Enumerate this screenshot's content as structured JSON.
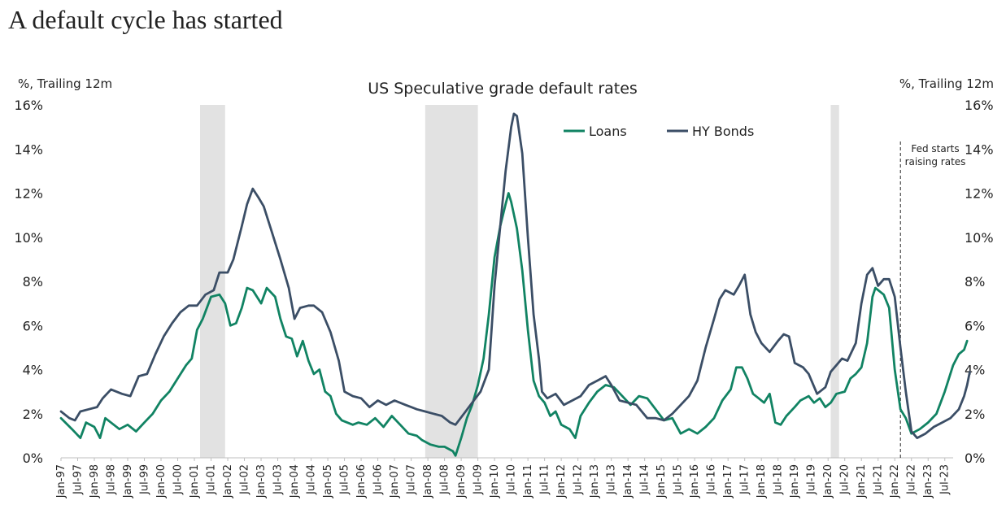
{
  "headline": "A default cycle has started",
  "chart_data": {
    "type": "line",
    "title": "US Speculative grade default rates",
    "ylabel_left": "%, Trailing 12m",
    "ylabel_right": "%, Trailing 12m",
    "ylim": [
      0,
      16
    ],
    "yticks": [
      "0%",
      "2%",
      "4%",
      "6%",
      "8%",
      "10%",
      "12%",
      "14%",
      "16%"
    ],
    "xlim": [
      1997.0,
      2023.75
    ],
    "xticks": [
      "Jan-97",
      "Jul-97",
      "Jan-98",
      "Jul-98",
      "Jan-99",
      "Jul-99",
      "Jan-00",
      "Jul-00",
      "Jan-01",
      "Jul-01",
      "Jan-02",
      "Jul-02",
      "Jan-03",
      "Jul-03",
      "Jan-04",
      "Jul-04",
      "Jan-05",
      "Jul-05",
      "Jan-06",
      "Jul-06",
      "Jan-07",
      "Jul-07",
      "Jan-08",
      "Jul-08",
      "Jan-09",
      "Jul-09",
      "Jan-10",
      "Jul-10",
      "Jan-11",
      "Jul-11",
      "Jan-12",
      "Jul-12",
      "Jan-13",
      "Jul-13",
      "Jan-14",
      "Jul-14",
      "Jan-15",
      "Jul-15",
      "Jan-16",
      "Jul-16",
      "Jan-17",
      "Jul-17",
      "Jan-18",
      "Jul-18",
      "Jan-19",
      "Jul-19",
      "Jan-20",
      "Jul-20",
      "Jan-21",
      "Jul-21",
      "Jan-22",
      "Jul-22",
      "Jan-23",
      "Jul-23"
    ],
    "recessions": [
      [
        2001.17,
        2001.92
      ],
      [
        2007.92,
        2009.5
      ],
      [
        2020.08,
        2020.33
      ]
    ],
    "grid": false,
    "legend_position": "top-center",
    "annotation": {
      "x": 2022.17,
      "lines": [
        "Fed starts",
        "raising rates"
      ]
    },
    "colors": {
      "Loans": "#118363",
      "HY Bonds": "#3b4e66",
      "recession": "#e2e2e2"
    },
    "series": [
      {
        "name": "Loans",
        "points": [
          [
            1997.0,
            1.8
          ],
          [
            1997.33,
            1.3
          ],
          [
            1997.58,
            0.9
          ],
          [
            1997.75,
            1.6
          ],
          [
            1998.0,
            1.4
          ],
          [
            1998.17,
            0.9
          ],
          [
            1998.33,
            1.8
          ],
          [
            1998.75,
            1.3
          ],
          [
            1999.0,
            1.5
          ],
          [
            1999.25,
            1.2
          ],
          [
            1999.5,
            1.6
          ],
          [
            1999.75,
            2.0
          ],
          [
            2000.0,
            2.6
          ],
          [
            2000.25,
            3.0
          ],
          [
            2000.5,
            3.6
          ],
          [
            2000.75,
            4.2
          ],
          [
            2000.92,
            4.5
          ],
          [
            2001.08,
            5.8
          ],
          [
            2001.25,
            6.3
          ],
          [
            2001.5,
            7.3
          ],
          [
            2001.75,
            7.4
          ],
          [
            2001.92,
            7.0
          ],
          [
            2002.08,
            6.0
          ],
          [
            2002.25,
            6.1
          ],
          [
            2002.42,
            6.8
          ],
          [
            2002.58,
            7.7
          ],
          [
            2002.75,
            7.6
          ],
          [
            2003.0,
            7.0
          ],
          [
            2003.17,
            7.7
          ],
          [
            2003.42,
            7.3
          ],
          [
            2003.58,
            6.3
          ],
          [
            2003.75,
            5.5
          ],
          [
            2003.92,
            5.4
          ],
          [
            2004.08,
            4.6
          ],
          [
            2004.25,
            5.3
          ],
          [
            2004.42,
            4.4
          ],
          [
            2004.58,
            3.8
          ],
          [
            2004.75,
            4.0
          ],
          [
            2004.92,
            3.0
          ],
          [
            2005.08,
            2.8
          ],
          [
            2005.25,
            2.0
          ],
          [
            2005.42,
            1.7
          ],
          [
            2005.58,
            1.6
          ],
          [
            2005.75,
            1.5
          ],
          [
            2005.92,
            1.6
          ],
          [
            2006.17,
            1.5
          ],
          [
            2006.42,
            1.8
          ],
          [
            2006.67,
            1.4
          ],
          [
            2006.92,
            1.9
          ],
          [
            2007.17,
            1.5
          ],
          [
            2007.42,
            1.1
          ],
          [
            2007.67,
            1.0
          ],
          [
            2007.83,
            0.8
          ],
          [
            2008.08,
            0.6
          ],
          [
            2008.33,
            0.5
          ],
          [
            2008.5,
            0.5
          ],
          [
            2008.75,
            0.3
          ],
          [
            2008.83,
            0.1
          ],
          [
            2009.0,
            0.9
          ],
          [
            2009.17,
            1.8
          ],
          [
            2009.33,
            2.4
          ],
          [
            2009.5,
            3.3
          ],
          [
            2009.67,
            4.5
          ],
          [
            2009.83,
            6.5
          ],
          [
            2010.0,
            9.1
          ],
          [
            2010.17,
            10.5
          ],
          [
            2010.33,
            11.5
          ],
          [
            2010.42,
            12.0
          ],
          [
            2010.5,
            11.6
          ],
          [
            2010.67,
            10.4
          ],
          [
            2010.83,
            8.5
          ],
          [
            2011.0,
            5.8
          ],
          [
            2011.17,
            3.5
          ],
          [
            2011.33,
            2.8
          ],
          [
            2011.5,
            2.5
          ],
          [
            2011.67,
            1.9
          ],
          [
            2011.83,
            2.1
          ],
          [
            2012.0,
            1.5
          ],
          [
            2012.25,
            1.3
          ],
          [
            2012.42,
            0.9
          ],
          [
            2012.58,
            1.9
          ],
          [
            2012.83,
            2.5
          ],
          [
            2013.08,
            3.0
          ],
          [
            2013.33,
            3.3
          ],
          [
            2013.58,
            3.2
          ],
          [
            2013.83,
            2.8
          ],
          [
            2014.08,
            2.4
          ],
          [
            2014.33,
            2.8
          ],
          [
            2014.58,
            2.7
          ],
          [
            2014.83,
            2.2
          ],
          [
            2015.08,
            1.7
          ],
          [
            2015.33,
            1.8
          ],
          [
            2015.58,
            1.1
          ],
          [
            2015.83,
            1.3
          ],
          [
            2016.08,
            1.1
          ],
          [
            2016.33,
            1.4
          ],
          [
            2016.58,
            1.8
          ],
          [
            2016.83,
            2.6
          ],
          [
            2017.08,
            3.1
          ],
          [
            2017.25,
            4.1
          ],
          [
            2017.42,
            4.1
          ],
          [
            2017.58,
            3.6
          ],
          [
            2017.75,
            2.9
          ],
          [
            2017.92,
            2.7
          ],
          [
            2018.08,
            2.5
          ],
          [
            2018.25,
            2.9
          ],
          [
            2018.42,
            1.6
          ],
          [
            2018.58,
            1.5
          ],
          [
            2018.75,
            1.9
          ],
          [
            2019.0,
            2.3
          ],
          [
            2019.17,
            2.6
          ],
          [
            2019.42,
            2.8
          ],
          [
            2019.58,
            2.5
          ],
          [
            2019.75,
            2.7
          ],
          [
            2019.92,
            2.3
          ],
          [
            2020.08,
            2.5
          ],
          [
            2020.25,
            2.9
          ],
          [
            2020.5,
            3.0
          ],
          [
            2020.67,
            3.6
          ],
          [
            2020.83,
            3.8
          ],
          [
            2021.0,
            4.1
          ],
          [
            2021.17,
            5.2
          ],
          [
            2021.33,
            7.3
          ],
          [
            2021.42,
            7.7
          ],
          [
            2021.67,
            7.4
          ],
          [
            2021.83,
            6.8
          ],
          [
            2022.0,
            4.0
          ],
          [
            2022.17,
            2.2
          ],
          [
            2022.33,
            1.8
          ],
          [
            2022.5,
            1.1
          ],
          [
            2022.75,
            1.3
          ],
          [
            2023.0,
            1.6
          ],
          [
            2023.25,
            2.0
          ],
          [
            2023.5,
            3.0
          ],
          [
            2023.75,
            4.2
          ],
          [
            2023.92,
            4.7
          ],
          [
            2024.08,
            4.9
          ],
          [
            2024.17,
            5.3
          ]
        ]
      },
      {
        "name": "HY Bonds",
        "points": [
          [
            1997.0,
            2.1
          ],
          [
            1997.25,
            1.8
          ],
          [
            1997.42,
            1.7
          ],
          [
            1997.58,
            2.1
          ],
          [
            1997.83,
            2.2
          ],
          [
            1998.08,
            2.3
          ],
          [
            1998.25,
            2.7
          ],
          [
            1998.5,
            3.1
          ],
          [
            1998.83,
            2.9
          ],
          [
            1999.08,
            2.8
          ],
          [
            1999.33,
            3.7
          ],
          [
            1999.58,
            3.8
          ],
          [
            1999.83,
            4.7
          ],
          [
            2000.08,
            5.5
          ],
          [
            2000.33,
            6.1
          ],
          [
            2000.58,
            6.6
          ],
          [
            2000.83,
            6.9
          ],
          [
            2001.08,
            6.9
          ],
          [
            2001.33,
            7.4
          ],
          [
            2001.58,
            7.6
          ],
          [
            2001.75,
            8.4
          ],
          [
            2002.0,
            8.4
          ],
          [
            2002.17,
            9.0
          ],
          [
            2002.42,
            10.5
          ],
          [
            2002.58,
            11.5
          ],
          [
            2002.75,
            12.2
          ],
          [
            2002.92,
            11.8
          ],
          [
            2003.08,
            11.4
          ],
          [
            2003.33,
            10.2
          ],
          [
            2003.58,
            9.0
          ],
          [
            2003.83,
            7.7
          ],
          [
            2004.0,
            6.3
          ],
          [
            2004.17,
            6.8
          ],
          [
            2004.42,
            6.9
          ],
          [
            2004.58,
            6.9
          ],
          [
            2004.83,
            6.6
          ],
          [
            2005.08,
            5.7
          ],
          [
            2005.33,
            4.4
          ],
          [
            2005.5,
            3.0
          ],
          [
            2005.75,
            2.8
          ],
          [
            2006.0,
            2.7
          ],
          [
            2006.25,
            2.3
          ],
          [
            2006.5,
            2.6
          ],
          [
            2006.75,
            2.4
          ],
          [
            2007.0,
            2.6
          ],
          [
            2007.33,
            2.4
          ],
          [
            2007.67,
            2.2
          ],
          [
            2007.92,
            2.1
          ],
          [
            2008.17,
            2.0
          ],
          [
            2008.42,
            1.9
          ],
          [
            2008.67,
            1.6
          ],
          [
            2008.83,
            1.5
          ],
          [
            2009.08,
            2.0
          ],
          [
            2009.33,
            2.5
          ],
          [
            2009.58,
            3.0
          ],
          [
            2009.83,
            4.0
          ],
          [
            2010.0,
            7.8
          ],
          [
            2010.17,
            10.5
          ],
          [
            2010.33,
            13.0
          ],
          [
            2010.5,
            15.0
          ],
          [
            2010.58,
            15.6
          ],
          [
            2010.67,
            15.5
          ],
          [
            2010.83,
            13.8
          ],
          [
            2011.0,
            10.0
          ],
          [
            2011.17,
            6.5
          ],
          [
            2011.33,
            4.5
          ],
          [
            2011.42,
            3.0
          ],
          [
            2011.58,
            2.7
          ],
          [
            2011.83,
            2.9
          ],
          [
            2012.08,
            2.4
          ],
          [
            2012.33,
            2.6
          ],
          [
            2012.58,
            2.8
          ],
          [
            2012.83,
            3.3
          ],
          [
            2013.08,
            3.5
          ],
          [
            2013.33,
            3.7
          ],
          [
            2013.5,
            3.3
          ],
          [
            2013.75,
            2.6
          ],
          [
            2014.0,
            2.5
          ],
          [
            2014.25,
            2.4
          ],
          [
            2014.58,
            1.8
          ],
          [
            2014.83,
            1.8
          ],
          [
            2015.08,
            1.7
          ],
          [
            2015.33,
            2.0
          ],
          [
            2015.58,
            2.4
          ],
          [
            2015.83,
            2.8
          ],
          [
            2016.08,
            3.5
          ],
          [
            2016.33,
            5.0
          ],
          [
            2016.58,
            6.3
          ],
          [
            2016.75,
            7.2
          ],
          [
            2016.92,
            7.6
          ],
          [
            2017.17,
            7.4
          ],
          [
            2017.33,
            7.8
          ],
          [
            2017.5,
            8.3
          ],
          [
            2017.67,
            6.5
          ],
          [
            2017.83,
            5.7
          ],
          [
            2018.0,
            5.2
          ],
          [
            2018.25,
            4.8
          ],
          [
            2018.5,
            5.3
          ],
          [
            2018.67,
            5.6
          ],
          [
            2018.83,
            5.5
          ],
          [
            2019.0,
            4.3
          ],
          [
            2019.25,
            4.1
          ],
          [
            2019.42,
            3.8
          ],
          [
            2019.67,
            2.9
          ],
          [
            2019.92,
            3.2
          ],
          [
            2020.08,
            3.9
          ],
          [
            2020.25,
            4.2
          ],
          [
            2020.42,
            4.5
          ],
          [
            2020.58,
            4.4
          ],
          [
            2020.83,
            5.2
          ],
          [
            2021.0,
            7.0
          ],
          [
            2021.17,
            8.3
          ],
          [
            2021.33,
            8.6
          ],
          [
            2021.5,
            7.8
          ],
          [
            2021.67,
            8.1
          ],
          [
            2021.83,
            8.1
          ],
          [
            2022.0,
            7.3
          ],
          [
            2022.17,
            5.0
          ],
          [
            2022.33,
            3.0
          ],
          [
            2022.5,
            1.2
          ],
          [
            2022.67,
            0.9
          ],
          [
            2022.92,
            1.1
          ],
          [
            2023.17,
            1.4
          ],
          [
            2023.42,
            1.6
          ],
          [
            2023.67,
            1.8
          ],
          [
            2023.92,
            2.2
          ],
          [
            2024.08,
            2.8
          ],
          [
            2024.17,
            3.3
          ],
          [
            2024.25,
            3.9
          ]
        ]
      }
    ]
  }
}
